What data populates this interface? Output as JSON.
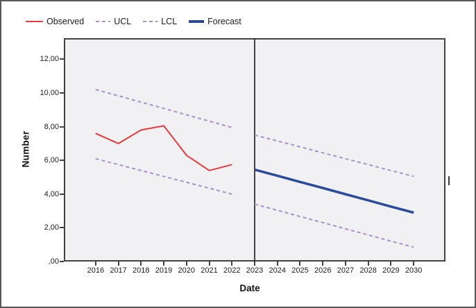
{
  "figure": {
    "legend": {
      "items": [
        {
          "label": "Observed",
          "style": "solid",
          "color": "#e83a3e",
          "thickness": 2,
          "swatch_width": 25
        },
        {
          "label": "UCL",
          "style": "dashed",
          "color": "#ab8fcd",
          "thickness": 2,
          "swatch_width": 21
        },
        {
          "label": "LCL",
          "style": "dashed",
          "color": "#ab8fcd",
          "thickness": 2,
          "swatch_width": 21
        },
        {
          "label": "Forecast",
          "style": "solid",
          "color": "#2b4a9c",
          "thickness": 4,
          "swatch_width": 22
        }
      ]
    },
    "y_axis": {
      "title": "Number",
      "tick_labels": [
        ",00",
        "2,00",
        "4,00",
        "6,00",
        "8,00",
        "10,00",
        "12,00"
      ],
      "tick_values": [
        0,
        2,
        4,
        6,
        8,
        10,
        12
      ]
    },
    "x_axis": {
      "title": "Date",
      "tick_labels": [
        "2016",
        "2017",
        "2018",
        "2019",
        "2020",
        "2021",
        "2022",
        "2023",
        "2024",
        "2025",
        "2026",
        "2027",
        "2028",
        "2029",
        "2030"
      ],
      "tick_values": [
        2016,
        2017,
        2018,
        2019,
        2020,
        2021,
        2022,
        2023,
        2024,
        2025,
        2026,
        2027,
        2028,
        2029,
        2030
      ]
    }
  },
  "chart_data": {
    "type": "line",
    "title": "",
    "xlabel": "Date",
    "ylabel": "Number",
    "xlim": [
      2014.6,
      2031.4
    ],
    "ylim": [
      0,
      13.25
    ],
    "grid": false,
    "legend_position": "top-left",
    "separator_x": 2023,
    "separator_note": "vertical line divides observed period (2016-2022) from forecast period (2023-2030)",
    "series": [
      {
        "name": "Observed",
        "color": "#e83a3e",
        "dash": false,
        "width": 2,
        "x": [
          2016,
          2017,
          2018,
          2019,
          2020,
          2021,
          2022
        ],
        "values": [
          7.6,
          7.0,
          7.8,
          8.05,
          6.3,
          5.4,
          5.75
        ]
      },
      {
        "name": "UCL-observed",
        "color": "#ab8fcd",
        "dash": true,
        "width": 2,
        "x": [
          2016,
          2017,
          2018,
          2019,
          2020,
          2021,
          2022
        ],
        "values": [
          10.2,
          9.83,
          9.45,
          9.08,
          8.7,
          8.33,
          7.95
        ]
      },
      {
        "name": "LCL-observed",
        "color": "#ab8fcd",
        "dash": true,
        "width": 2,
        "x": [
          2016,
          2017,
          2018,
          2019,
          2020,
          2021,
          2022
        ],
        "values": [
          6.1,
          5.75,
          5.4,
          5.05,
          4.7,
          4.35,
          4.0
        ]
      },
      {
        "name": "Forecast",
        "color": "#2b4a9c",
        "dash": false,
        "width": 3.5,
        "x": [
          2023,
          2024,
          2025,
          2026,
          2027,
          2028,
          2029,
          2030
        ],
        "values": [
          5.45,
          5.09,
          4.72,
          4.36,
          3.99,
          3.63,
          3.26,
          2.9
        ]
      },
      {
        "name": "UCL-forecast",
        "color": "#ab8fcd",
        "dash": true,
        "width": 2,
        "x": [
          2023,
          2024,
          2025,
          2026,
          2027,
          2028,
          2029,
          2030
        ],
        "values": [
          7.5,
          7.15,
          6.8,
          6.45,
          6.1,
          5.75,
          5.4,
          5.05
        ]
      },
      {
        "name": "LCL-forecast",
        "color": "#ab8fcd",
        "dash": true,
        "width": 2,
        "x": [
          2023,
          2024,
          2025,
          2026,
          2027,
          2028,
          2029,
          2030
        ],
        "values": [
          3.4,
          3.04,
          2.67,
          2.31,
          1.94,
          1.58,
          1.21,
          0.85
        ]
      }
    ]
  }
}
